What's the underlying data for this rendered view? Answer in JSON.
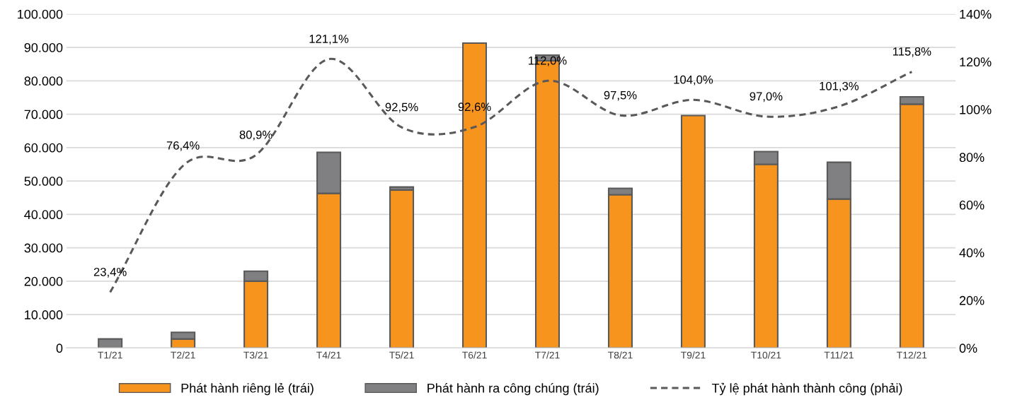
{
  "chart_data": {
    "type": "bar",
    "stacked": true,
    "categories": [
      "T1/21",
      "T2/21",
      "T3/21",
      "T4/21",
      "T5/21",
      "T6/21",
      "T7/21",
      "T8/21",
      "T9/21",
      "T10/21",
      "T11/21",
      "T12/21"
    ],
    "series": [
      {
        "name": "Phát hành riêng lẻ (trái)",
        "color": "#f7941d",
        "values": [
          null,
          2700,
          20000,
          46300,
          47300,
          91300,
          86000,
          45900,
          69600,
          55000,
          44600,
          73000
        ]
      },
      {
        "name": "Phát hành ra công chúng (trái)",
        "color": "#808083",
        "values": [
          2700,
          2000,
          3000,
          12300,
          900,
          0,
          1700,
          1900,
          0,
          3800,
          11000,
          2200
        ]
      },
      {
        "name": "Tỷ lệ phát hành thành công (phải)",
        "type": "line",
        "axis": "y2",
        "color": "#595959",
        "line_style": "dashed",
        "marker": "none",
        "values": [
          23.4,
          76.4,
          80.9,
          121.1,
          92.5,
          92.6,
          112.0,
          97.5,
          104.0,
          97.0,
          101.3,
          115.8
        ],
        "value_labels": [
          "23,4%",
          "76,4%",
          "80,9%",
          "121,1%",
          "92,5%",
          "92,6%",
          "112,0%",
          "97,5%",
          "104,0%",
          "97,0%",
          "101,3%",
          "115,8%"
        ]
      }
    ],
    "ylim": [
      0,
      100000
    ],
    "yticks": [
      0,
      {
        "value": 10000,
        "label": "10.000"
      },
      {
        "value": 20000,
        "label": "20.000"
      },
      {
        "value": 30000,
        "label": "30.000"
      },
      {
        "value": 40000,
        "label": "40.000"
      },
      {
        "value": 50000,
        "label": "50.000"
      },
      {
        "value": 60000,
        "label": "60.000"
      },
      {
        "value": 70000,
        "label": "70.000"
      },
      {
        "value": 80000,
        "label": "80.000"
      },
      {
        "value": 90000,
        "label": "90.000"
      },
      {
        "value": 100000,
        "label": "100.000"
      }
    ],
    "y2lim": [
      0,
      140
    ],
    "y2ticks": [
      {
        "value": 0,
        "label": "0%"
      },
      {
        "value": 20,
        "label": "20%"
      },
      {
        "value": 40,
        "label": "40%"
      },
      {
        "value": 60,
        "label": "60%"
      },
      {
        "value": 80,
        "label": "80%"
      },
      {
        "value": 100,
        "label": "100%"
      },
      {
        "value": 120,
        "label": "120%"
      },
      {
        "value": 140,
        "label": "140%"
      }
    ],
    "grid": "y",
    "legend": "bottom"
  }
}
